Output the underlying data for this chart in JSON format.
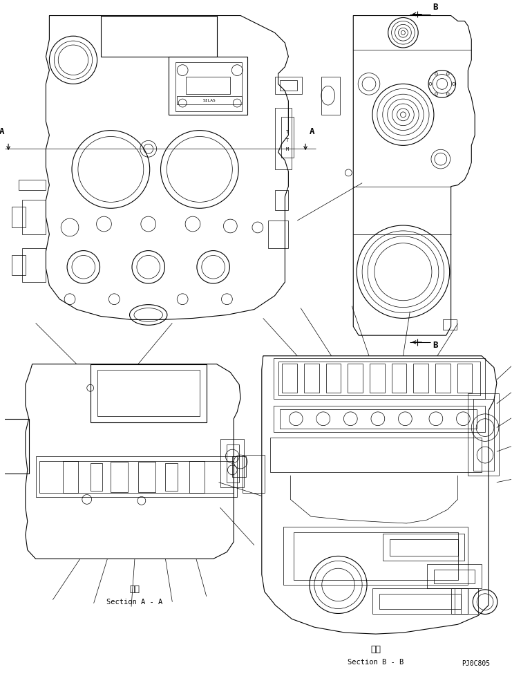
{
  "bg_color": "#ffffff",
  "line_color": "#000000",
  "fig_width": 7.41,
  "fig_height": 9.75,
  "dpi": 100,
  "label_A": "A",
  "label_B": "B",
  "section_aa_kanji": "断面",
  "section_aa_text": "Section A - A",
  "section_bb_kanji": "断面",
  "section_bb_text": "Section B - B",
  "part_number": "PJ0C805",
  "lw_thin": 0.5,
  "lw_med": 0.8,
  "lw_thick": 1.2
}
